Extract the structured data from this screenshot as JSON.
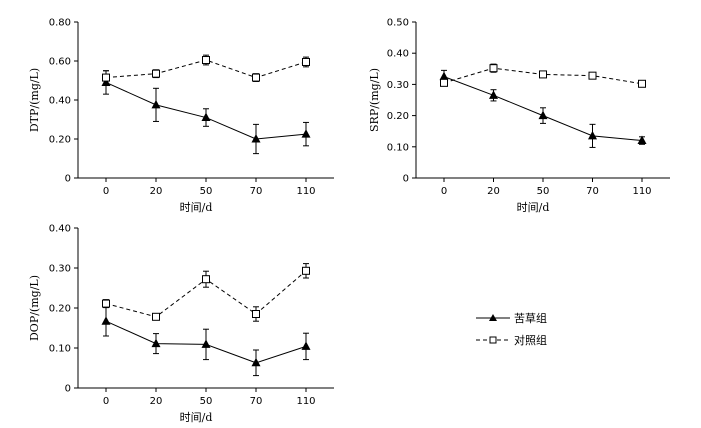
{
  "legend": {
    "treatment_label": "苦草组",
    "control_label": "对照组"
  },
  "chart_data": [
    {
      "type": "line",
      "title": "",
      "xlabel": "时间/d",
      "ylabel": "DTP/(mg/L)",
      "categories": [
        "0",
        "20",
        "50",
        "70",
        "110"
      ],
      "yticks": [
        "0",
        "0.20",
        "0.40",
        "0.60",
        "0.80"
      ],
      "ylim": [
        0,
        0.8
      ],
      "series": [
        {
          "name": "苦草组",
          "marker": "filled-triangle",
          "line": "solid",
          "values": [
            0.49,
            0.375,
            0.31,
            0.2,
            0.225
          ],
          "errors": [
            0.06,
            0.085,
            0.045,
            0.075,
            0.06
          ]
        },
        {
          "name": "对照组",
          "marker": "open-square",
          "line": "dashed",
          "values": [
            0.515,
            0.535,
            0.605,
            0.515,
            0.595
          ],
          "errors": [
            0.035,
            0.02,
            0.025,
            0.02,
            0.025
          ]
        }
      ]
    },
    {
      "type": "line",
      "title": "",
      "xlabel": "时间/d",
      "ylabel": "SRP/(mg/L)",
      "categories": [
        "0",
        "20",
        "50",
        "70",
        "110"
      ],
      "yticks": [
        "0",
        "0.10",
        "0.20",
        "0.30",
        "0.40",
        "0.50"
      ],
      "ylim": [
        0,
        0.5
      ],
      "series": [
        {
          "name": "苦草组",
          "marker": "filled-triangle",
          "line": "solid",
          "values": [
            0.325,
            0.265,
            0.2,
            0.135,
            0.12
          ],
          "errors": [
            0.02,
            0.018,
            0.025,
            0.037,
            0.012
          ]
        },
        {
          "name": "对照组",
          "marker": "open-square",
          "line": "dashed",
          "values": [
            0.305,
            0.352,
            0.332,
            0.328,
            0.302
          ],
          "errors": [
            0.01,
            0.013,
            0.005,
            0.004,
            0.004
          ]
        }
      ]
    },
    {
      "type": "line",
      "title": "",
      "xlabel": "时间/d",
      "ylabel": "DOP/(mg/L)",
      "categories": [
        "0",
        "20",
        "50",
        "70",
        "110"
      ],
      "yticks": [
        "0",
        "0.10",
        "0.20",
        "0.30",
        "0.40"
      ],
      "ylim": [
        0,
        0.4
      ],
      "series": [
        {
          "name": "苦草组",
          "marker": "filled-triangle",
          "line": "solid",
          "values": [
            0.167,
            0.111,
            0.109,
            0.063,
            0.104
          ],
          "errors": [
            0.037,
            0.025,
            0.038,
            0.032,
            0.033
          ]
        },
        {
          "name": "对照组",
          "marker": "open-square",
          "line": "dashed",
          "values": [
            0.211,
            0.178,
            0.272,
            0.185,
            0.293
          ],
          "errors": [
            0.01,
            0.004,
            0.02,
            0.018,
            0.018
          ]
        }
      ]
    }
  ]
}
